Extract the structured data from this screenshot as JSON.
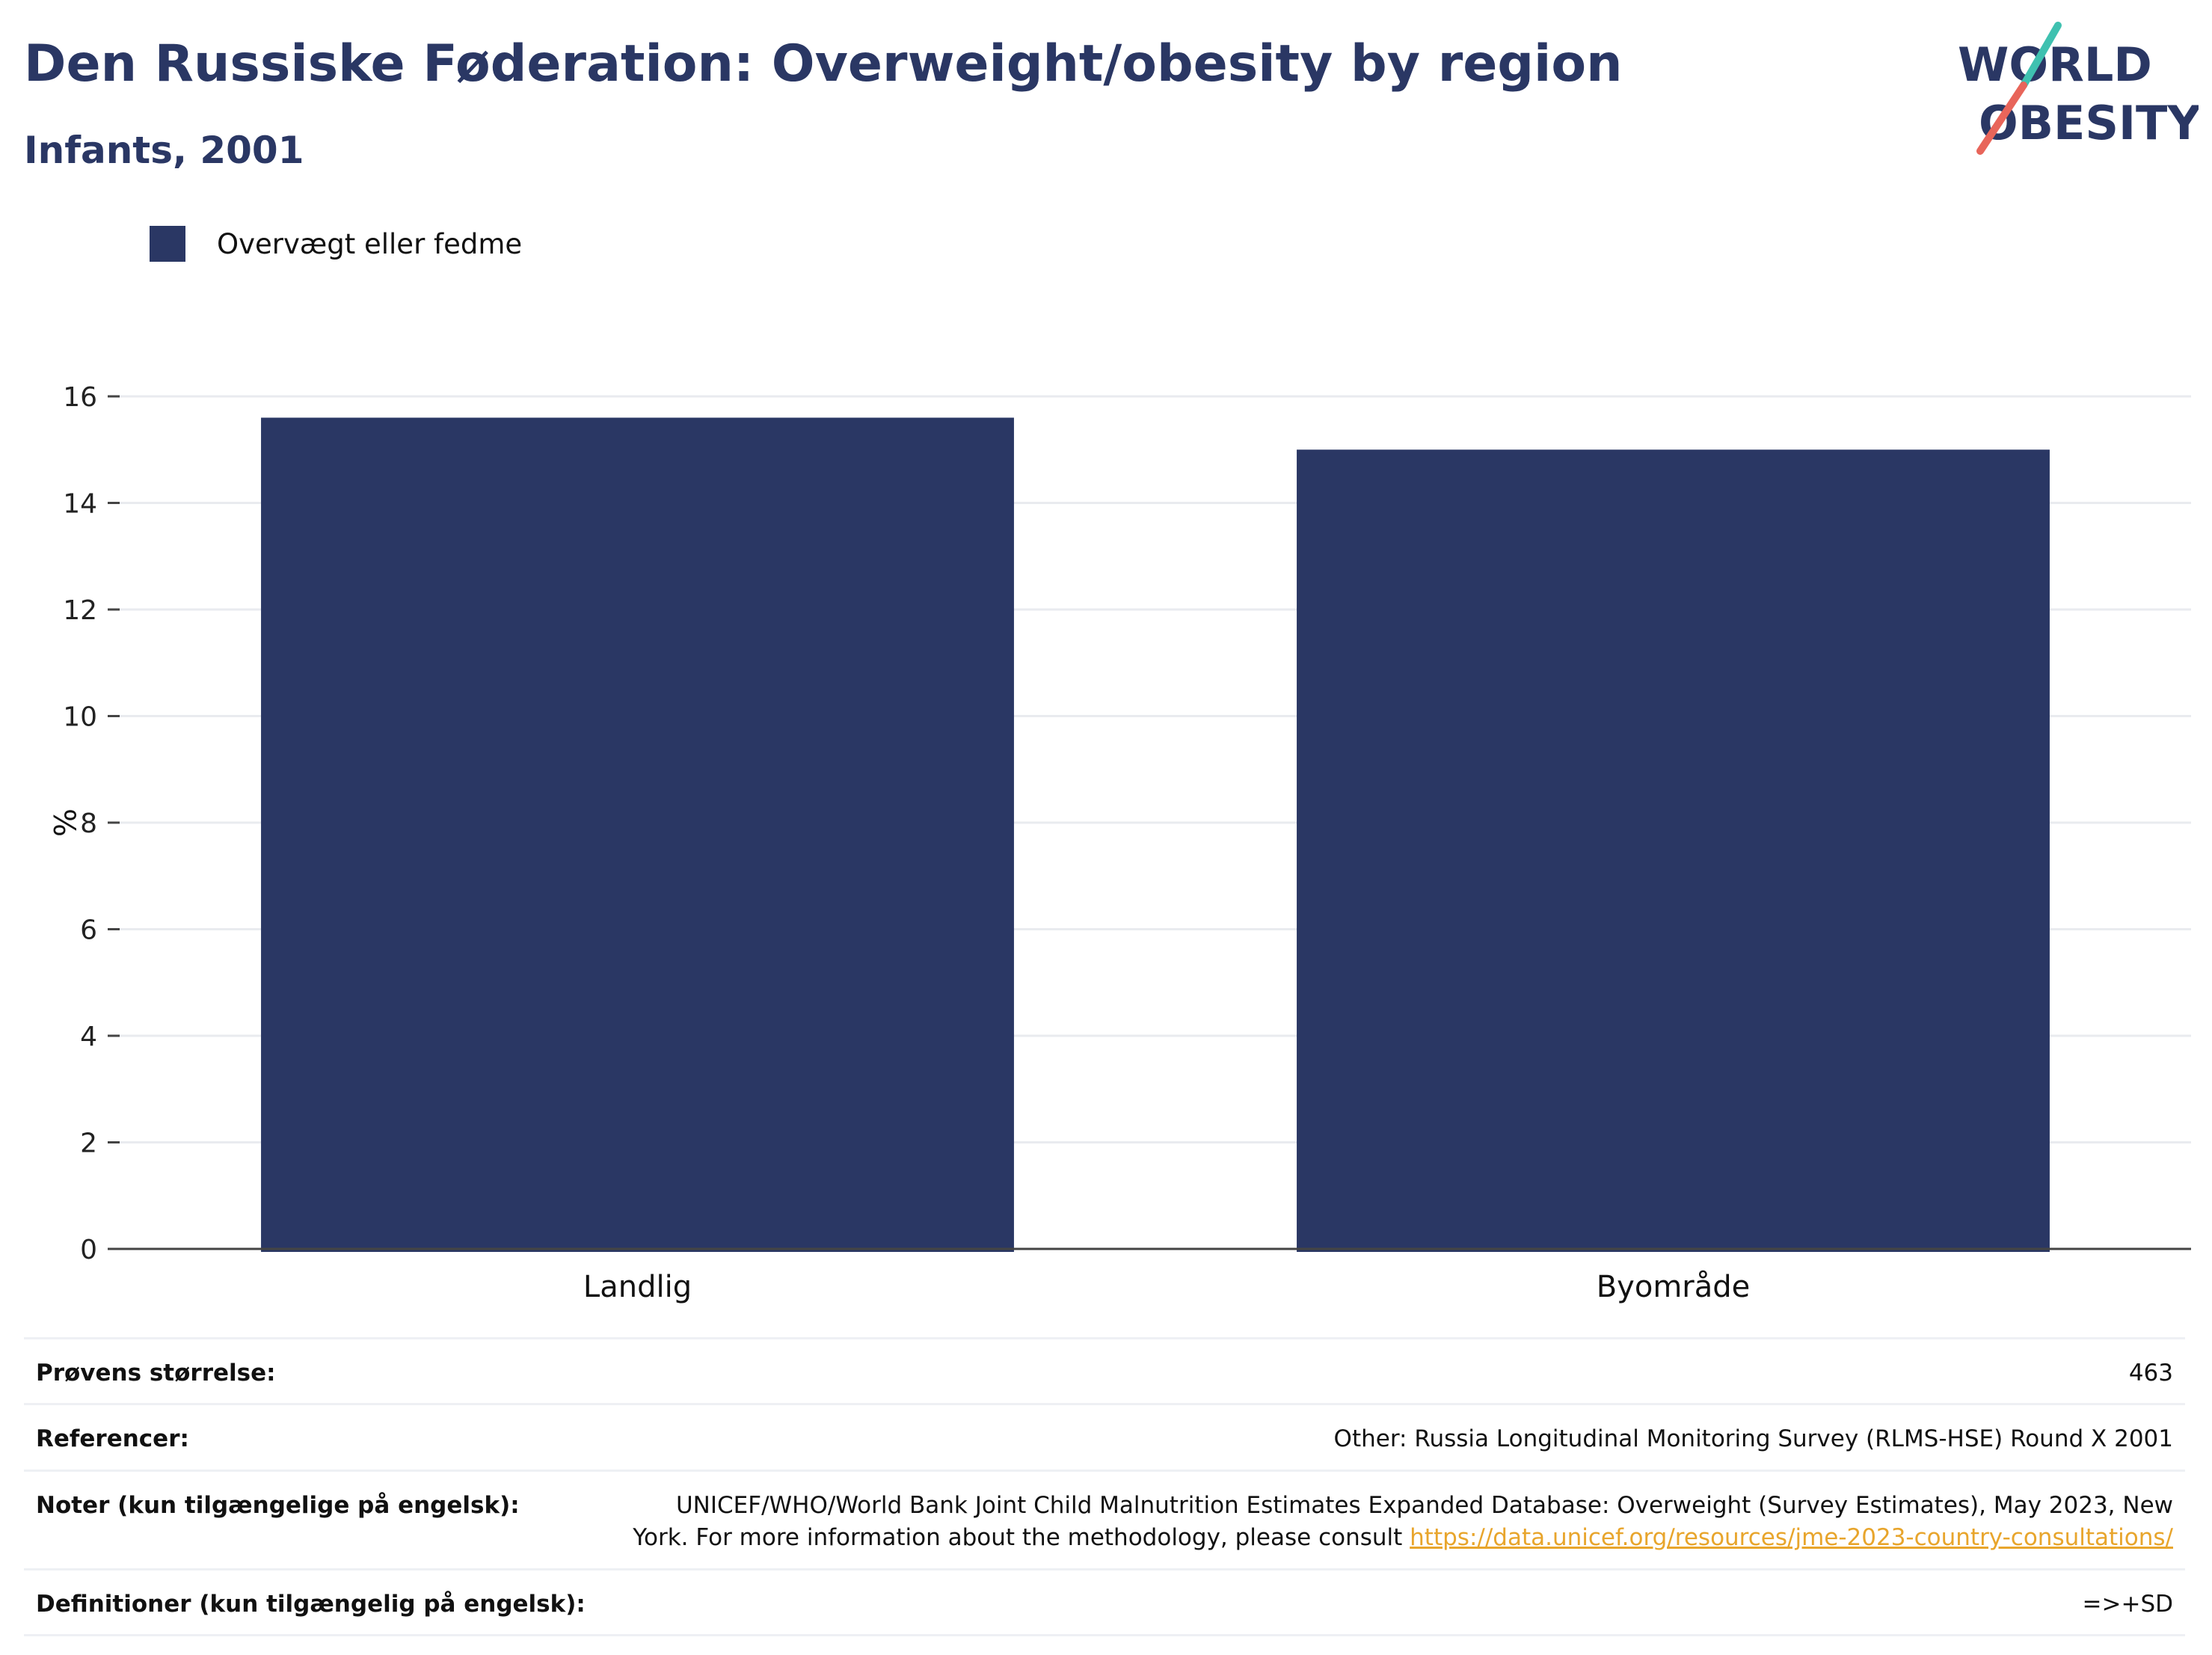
{
  "header": {
    "title": "Den Russiske Føderation: Overweight/obesity by region",
    "subtitle": "Infants, 2001"
  },
  "logo": {
    "line1": "WORLD",
    "line2": "OBESITY",
    "colors": {
      "text": "#2a3764",
      "slash_top": "#3fc1b0",
      "slash_bottom": "#e8655a"
    }
  },
  "legend": {
    "items": [
      {
        "label": "Overvægt eller fedme",
        "color": "#2a3764"
      }
    ]
  },
  "chart_data": {
    "type": "bar",
    "categories": [
      "Landlig",
      "Byområde"
    ],
    "series": [
      {
        "name": "Overvægt eller fedme",
        "values": [
          15.6,
          15.0
        ]
      }
    ],
    "ylabel": "%",
    "ylim": [
      0,
      16
    ],
    "yticks": [
      0,
      2,
      4,
      6,
      8,
      10,
      12,
      14,
      16
    ],
    "grid": true,
    "legend_position": "top-left",
    "bar_color": "#2a3764"
  },
  "info": {
    "rows": [
      {
        "label": "Prøvens størrelse:",
        "value": "463"
      },
      {
        "label": "Referencer:",
        "value": "Other: Russia Longitudinal Monitoring Survey (RLMS-HSE) Round X 2001"
      },
      {
        "label": "Noter (kun tilgængelige på engelsk):",
        "value": "UNICEF/WHO/World Bank Joint Child Malnutrition Estimates Expanded Database: Overweight (Survey Estimates), May 2023, New York. For more information about the methodology, please consult",
        "link": "https://data.unicef.org/resources/jme-2023-country-consultations/"
      },
      {
        "label": "Definitioner (kun tilgængelig på engelsk):",
        "value": "=>+SD"
      }
    ]
  }
}
